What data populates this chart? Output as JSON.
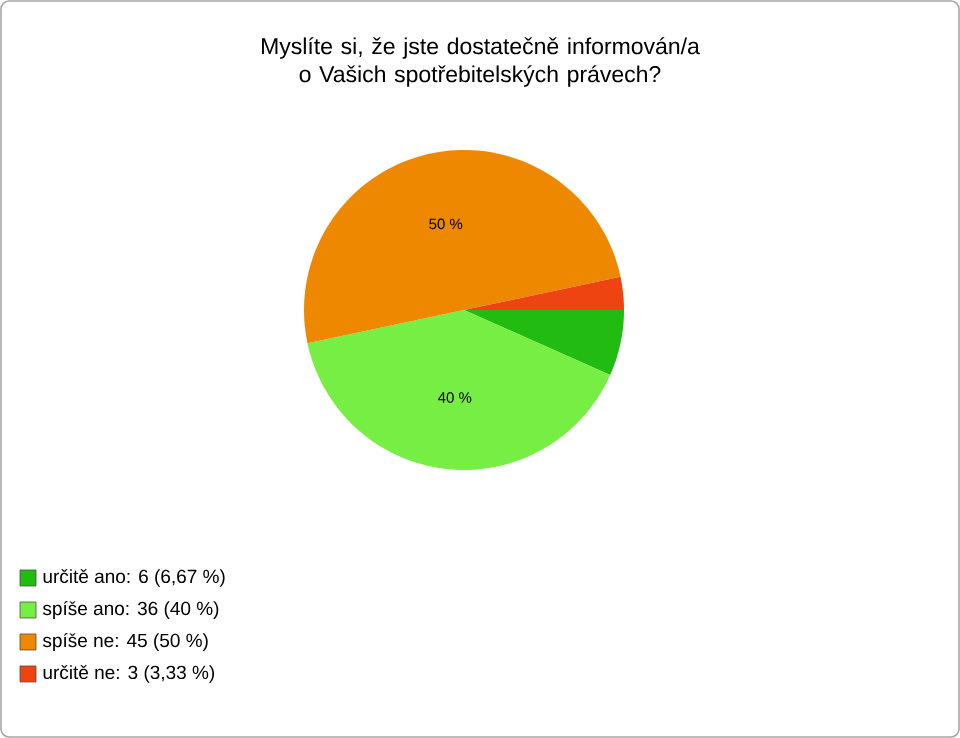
{
  "chart_data": {
    "type": "pie",
    "title": "Myslíte si, že jste dostatečně informován/a o Vašich spotřebitelských právech?",
    "categories": [
      "určitě ano: 6 (6,67 %)",
      "spíše ano: 36 (40 %)",
      "spíše ne: 45 (50 %)",
      "určitě ne: 3 (3,33 %)"
    ],
    "values": [
      6.67,
      40,
      50,
      3.33
    ],
    "value_labels": [
      null,
      "40 %",
      "50 %",
      null
    ],
    "colors": [
      "#22bb11",
      "#77ee44",
      "#ee8800",
      "#ee4411"
    ],
    "legend": "bottom left"
  }
}
